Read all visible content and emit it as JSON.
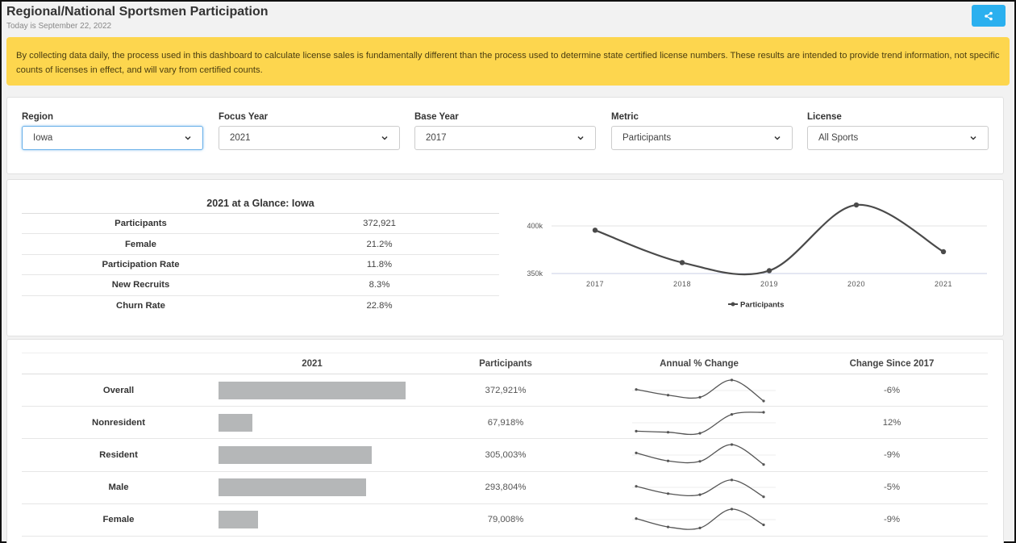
{
  "header": {
    "title": "Regional/National Sportsmen Participation",
    "date": "Today is September 22, 2022",
    "share_icon": "share-icon"
  },
  "notice": {
    "text": "By collecting data daily, the process used in this dashboard to calculate license sales is fundamentally different than the process used to determine state certified license numbers. These results are intended to provide trend information, not specific counts of licenses in effect, and will vary from certified counts."
  },
  "filters": [
    {
      "label": "Region",
      "value": "Iowa"
    },
    {
      "label": "Focus Year",
      "value": "2021"
    },
    {
      "label": "Base Year",
      "value": "2017"
    },
    {
      "label": "Metric",
      "value": "Participants"
    },
    {
      "label": "License",
      "value": "All Sports"
    }
  ],
  "glance": {
    "title": "2021 at a Glance: Iowa",
    "rows": [
      {
        "label": "Participants",
        "value": "372,921"
      },
      {
        "label": "Female",
        "value": "21.2%"
      },
      {
        "label": "Participation Rate",
        "value": "11.8%"
      },
      {
        "label": "New Recruits",
        "value": "8.3%"
      },
      {
        "label": "Churn Rate",
        "value": "22.8%"
      }
    ]
  },
  "chart_data": {
    "type": "line",
    "title": "",
    "xlabel": "",
    "ylabel": "",
    "x": [
      "2017",
      "2018",
      "2019",
      "2020",
      "2021"
    ],
    "y_ticks": [
      "400k",
      "350k"
    ],
    "ylim": [
      350000,
      400000
    ],
    "grid": true,
    "legend": "bottom",
    "series": [
      {
        "name": "Participants",
        "values": [
          395500,
          361500,
          353000,
          422000,
          372921
        ]
      }
    ]
  },
  "breakdown": {
    "headers": [
      "2021",
      "Participants",
      "Annual % Change",
      "Change Since 2017"
    ],
    "rows": [
      {
        "label": "Overall",
        "bar": 1.0,
        "participants": "372,921%",
        "trend": [
          0.55,
          0.28,
          0.18,
          1.0,
          0.0
        ],
        "change": "-6%"
      },
      {
        "label": "Nonresident",
        "bar": 0.182,
        "participants": "67,918%",
        "trend": [
          0.1,
          0.05,
          0.0,
          0.9,
          1.0
        ],
        "change": "12%"
      },
      {
        "label": "Resident",
        "bar": 0.818,
        "participants": "305,003%",
        "trend": [
          0.6,
          0.22,
          0.2,
          1.0,
          0.05
        ],
        "change": "-9%"
      },
      {
        "label": "Male",
        "bar": 0.788,
        "participants": "293,804%",
        "trend": [
          0.55,
          0.2,
          0.15,
          0.85,
          0.05
        ],
        "change": "-5%"
      },
      {
        "label": "Female",
        "bar": 0.212,
        "participants": "79,008%",
        "trend": [
          0.55,
          0.15,
          0.1,
          1.0,
          0.25
        ],
        "change": "-9%"
      }
    ]
  }
}
